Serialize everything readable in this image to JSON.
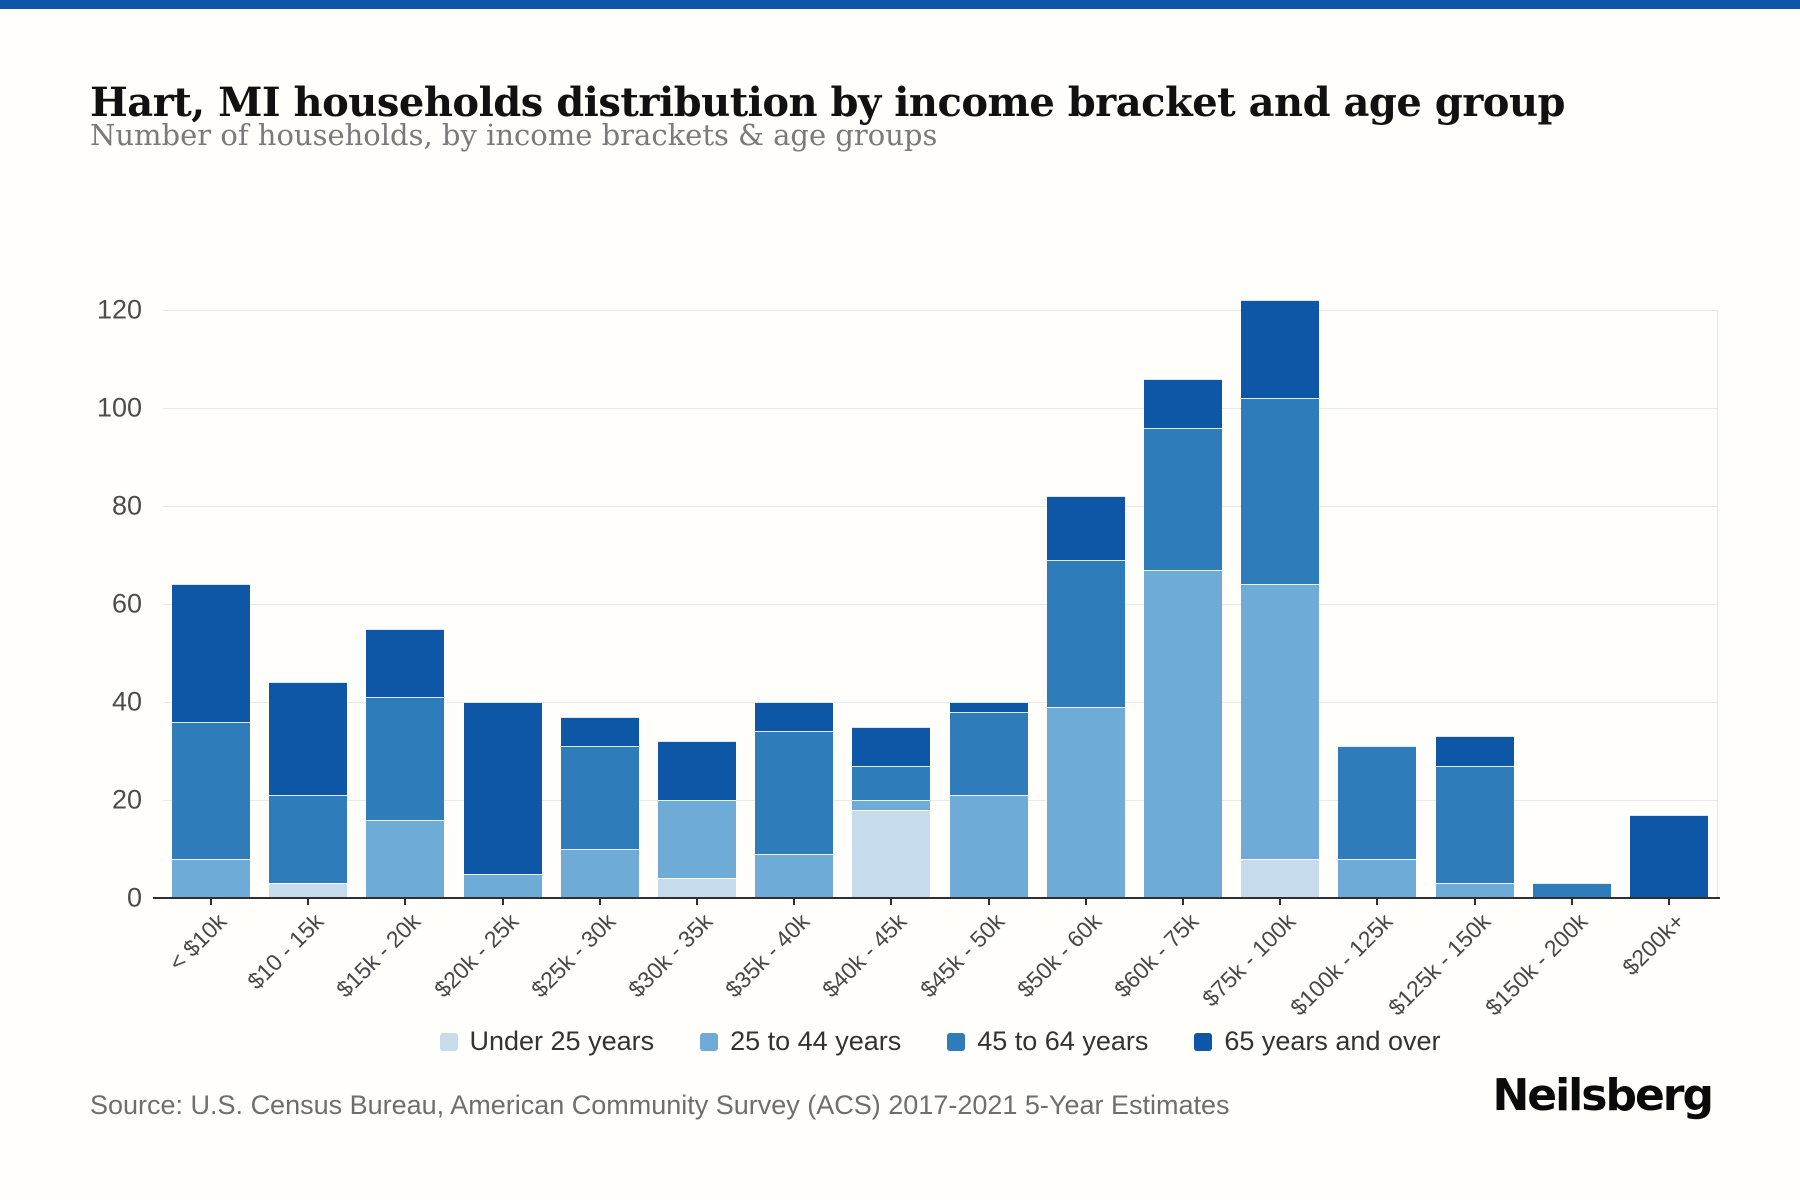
{
  "page": {
    "top_bar_color": "#0d57a6",
    "accent_navy": "#0d57a6",
    "gridline_color": "#e9e9e9"
  },
  "header": {
    "title": "Hart, MI households distribution by income bracket and age group",
    "subtitle": "Number of households, by income brackets & age groups"
  },
  "chart_data": {
    "type": "bar",
    "stacked": true,
    "title": "Hart, MI households distribution by income bracket and age group",
    "subtitle": "Number of households, by income brackets & age groups",
    "xlabel": "",
    "ylabel": "",
    "ylim": [
      0,
      120
    ],
    "yticks": [
      0,
      20,
      40,
      60,
      80,
      100,
      120
    ],
    "grid": true,
    "legend_position": "bottom",
    "categories": [
      "< $10k",
      "$10 - 15k",
      "$15k - 20k",
      "$20k - 25k",
      "$25k - 30k",
      "$30k - 35k",
      "$35k - 40k",
      "$40k - 45k",
      "$45k - 50k",
      "$50k - 60k",
      "$60k - 75k",
      "$75k - 100k",
      "$100k - 125k",
      "$125k - 150k",
      "$150k - 200k",
      "$200k+"
    ],
    "series": [
      {
        "name": "Under 25 years",
        "color": "#c6dcec",
        "values": [
          0,
          3,
          0,
          0,
          0,
          4,
          0,
          18,
          0,
          0,
          0,
          8,
          0,
          0,
          0,
          0
        ]
      },
      {
        "name": "25 to 44 years",
        "color": "#6fabd7",
        "values": [
          8,
          0,
          16,
          5,
          10,
          16,
          9,
          2,
          21,
          39,
          67,
          56,
          8,
          3,
          0,
          0
        ]
      },
      {
        "name": "45 to 64 years",
        "color": "#2f7cba",
        "values": [
          28,
          18,
          25,
          0,
          21,
          0,
          25,
          7,
          17,
          30,
          29,
          38,
          23,
          24,
          3,
          0
        ]
      },
      {
        "name": "65 years and over",
        "color": "#0d57a6",
        "values": [
          28,
          23,
          14,
          35,
          6,
          12,
          6,
          8,
          2,
          13,
          10,
          20,
          0,
          6,
          0,
          17
        ]
      }
    ],
    "totals": [
      64,
      44,
      55,
      40,
      37,
      32,
      40,
      35,
      40,
      82,
      106,
      122,
      31,
      33,
      3,
      17
    ]
  },
  "footer": {
    "source": "Source: U.S. Census Bureau, American Community Survey (ACS) 2017-2021 5-Year Estimates",
    "brand": "Neilsberg"
  }
}
